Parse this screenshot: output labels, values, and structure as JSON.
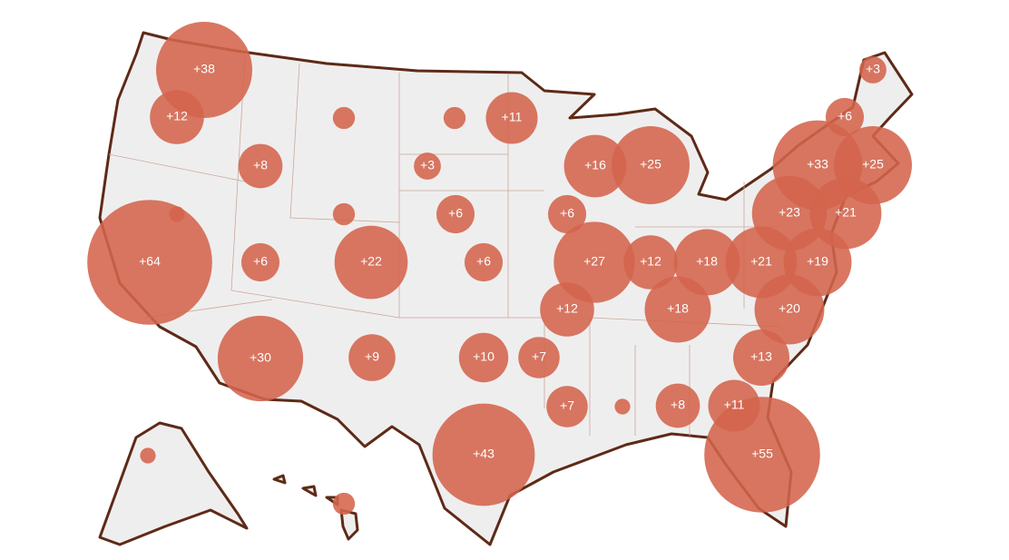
{
  "chart_data": {
    "type": "bubble",
    "values": [
      38,
      12,
      8,
      64,
      1,
      6,
      30,
      2,
      2,
      22,
      9,
      2,
      11,
      3,
      6,
      6,
      10,
      7,
      43,
      6,
      16,
      25,
      27,
      12,
      12,
      18,
      18,
      7,
      1,
      8,
      11,
      55,
      13,
      20,
      21,
      19,
      23,
      21,
      33,
      25,
      6,
      3,
      1,
      2
    ],
    "value_labels": [
      "+38",
      "+12",
      "+8",
      "+64",
      null,
      "+6",
      "+30",
      null,
      null,
      "+22",
      "+9",
      null,
      "+11",
      "+3",
      "+6",
      "+6",
      "+10",
      "+7",
      "+43",
      "+6",
      "+16",
      "+25",
      "+27",
      "+12",
      "+12",
      "+18",
      "+18",
      "+7",
      null,
      "+8",
      "+11",
      "+55",
      "+13",
      "+20",
      "+21",
      "+19",
      "+23",
      "+21",
      "+33",
      "+25",
      "+6",
      "+3",
      null,
      null
    ],
    "color": "#d4644c"
  }
}
